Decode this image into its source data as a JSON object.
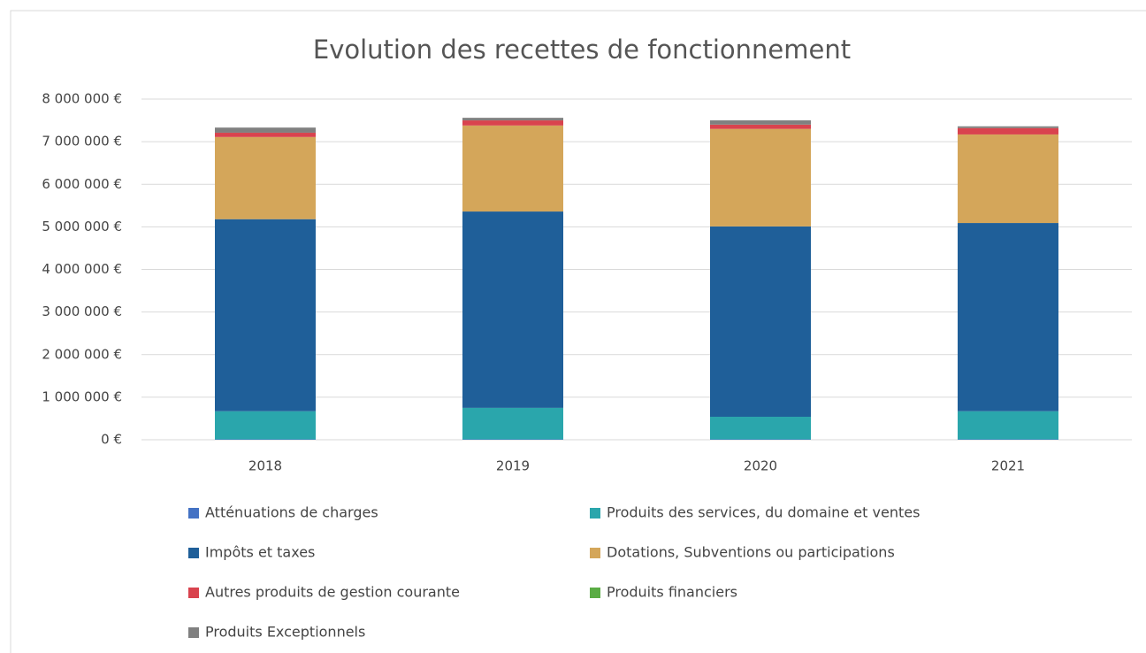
{
  "chart_data": {
    "type": "stacked_bar",
    "title": "Evolution des recettes de fonctionnement",
    "categories": [
      "2018",
      "2019",
      "2020",
      "2021"
    ],
    "series": [
      {
        "name": "Atténuations de charges",
        "color": "#4472c4",
        "values": [
          10000,
          10000,
          10000,
          10000
        ]
      },
      {
        "name": "Produits des services, du domaine et ventes",
        "color": "#2aa6ac",
        "values": [
          660000,
          740000,
          530000,
          660000
        ]
      },
      {
        "name": "Impôts et taxes",
        "color": "#1f5f99",
        "values": [
          4510000,
          4610000,
          4470000,
          4420000
        ]
      },
      {
        "name": "Dotations, Subventions ou participations",
        "color": "#d4a65a",
        "values": [
          1930000,
          2020000,
          2290000,
          2080000
        ]
      },
      {
        "name": "Autres produits de gestion courante",
        "color": "#d9434e",
        "values": [
          100000,
          120000,
          100000,
          150000
        ]
      },
      {
        "name": "Produits financiers",
        "color": "#5aac44",
        "values": [
          1000,
          1000,
          1000,
          1000
        ]
      },
      {
        "name": "Produits Exceptionnels",
        "color": "#808080",
        "values": [
          120000,
          60000,
          100000,
          40000
        ]
      }
    ],
    "ylim": [
      0,
      8000000
    ],
    "yticks": [
      {
        "value": 0,
        "label": "0 €"
      },
      {
        "value": 1000000,
        "label": "1 000 000 €"
      },
      {
        "value": 2000000,
        "label": "2 000 000 €"
      },
      {
        "value": 3000000,
        "label": "3 000 000 €"
      },
      {
        "value": 4000000,
        "label": "4 000 000 €"
      },
      {
        "value": 5000000,
        "label": "5 000 000 €"
      },
      {
        "value": 6000000,
        "label": "6 000 000 €"
      },
      {
        "value": 7000000,
        "label": "7 000 000 €"
      },
      {
        "value": 8000000,
        "label": "8 000 000 €"
      }
    ],
    "grid": true
  }
}
